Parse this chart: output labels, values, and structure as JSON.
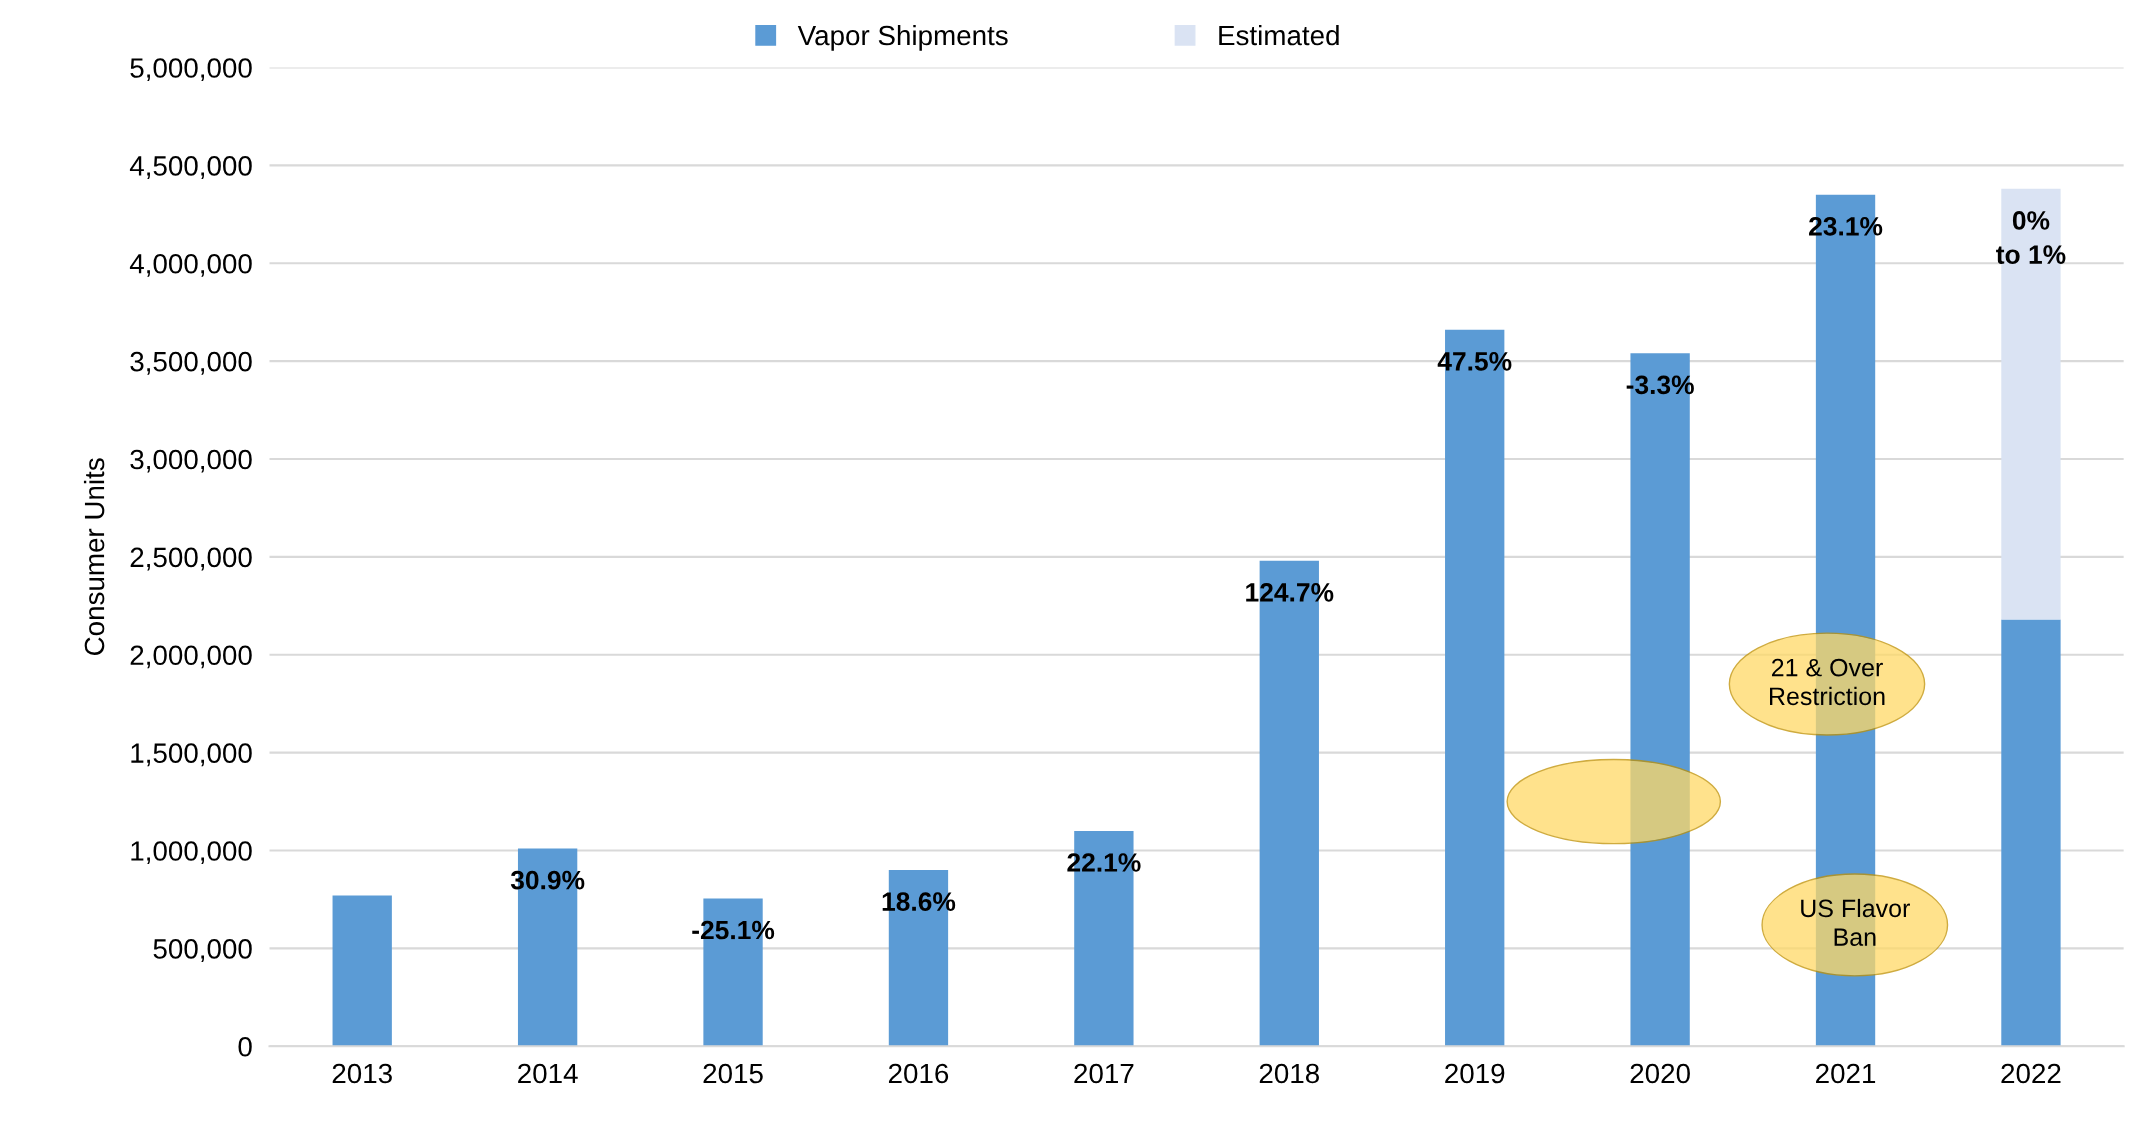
{
  "chart_data": {
    "type": "bar",
    "stacked": true,
    "ylabel": "Consumer Units",
    "categories": [
      "2013",
      "2014",
      "2015",
      "2016",
      "2017",
      "2018",
      "2019",
      "2020",
      "2021",
      "2022"
    ],
    "series": [
      {
        "name": "Vapor Shipments",
        "color": "#5b9bd5",
        "values": [
          770000,
          1010000,
          755000,
          900000,
          1100000,
          2480000,
          3660000,
          3540000,
          4350000,
          2180000
        ]
      },
      {
        "name": "Estimated",
        "color": "#dae3f3",
        "values": [
          null,
          null,
          null,
          null,
          null,
          null,
          null,
          null,
          null,
          2200000
        ]
      }
    ],
    "ylim": [
      0,
      5000000
    ],
    "yticks": [
      0,
      {
        "value": 500000,
        "label": "500,000"
      },
      {
        "value": 1000000,
        "label": "1,000,000"
      },
      {
        "value": 1500000,
        "label": "1,500,000"
      },
      {
        "value": 2000000,
        "label": "2,000,000"
      },
      {
        "value": 2500000,
        "label": "2,500,000"
      },
      {
        "value": 3000000,
        "label": "3,000,000"
      },
      {
        "value": 3500000,
        "label": "3,500,000"
      },
      {
        "value": 4000000,
        "label": "4,000,000"
      },
      {
        "value": 4500000,
        "label": "4,500,000"
      },
      {
        "value": 5000000,
        "label": "5,000,000"
      }
    ],
    "grid": "y",
    "legend": "top",
    "annotations": [
      {
        "text": "30.9%",
        "x": "2014",
        "y": 1010000
      },
      {
        "text": "-25.1%",
        "x": "2015",
        "y": 755000
      },
      {
        "text": "18.6%",
        "x": "2016",
        "y": 900000
      },
      {
        "text": "22.1%",
        "x": "2017",
        "y": 1100000
      },
      {
        "text": "124.7%",
        "x": "2018",
        "y": 2480000
      },
      {
        "text": "47.5%",
        "x": "2019",
        "y": 3660000
      },
      {
        "text": "-3.3%",
        "x": "2020",
        "y": 3540000
      },
      {
        "text": "23.1%",
        "x": "2021",
        "y": 4350000
      },
      {
        "text": "0%\nto 1%",
        "x": "2022",
        "y": 4380000
      },
      "21 & Over\nRestriction",
      "US Flavor\nBan"
    ]
  }
}
